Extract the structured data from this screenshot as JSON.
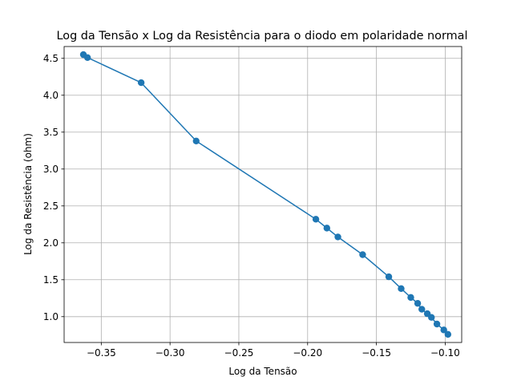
{
  "chart_data": {
    "type": "line",
    "title": "Log da Tensão x Log da Resistência para o diodo em polaridade normal",
    "xlabel": "Log da Tensão",
    "ylabel": "Log da Resistência (ohm)",
    "xlim": [
      -0.377,
      -0.088
    ],
    "ylim": [
      0.65,
      4.66
    ],
    "xticks": [
      -0.35,
      -0.3,
      -0.25,
      -0.2,
      -0.15,
      -0.1
    ],
    "xtick_labels": [
      "−0.35",
      "−0.30",
      "−0.25",
      "−0.20",
      "−0.15",
      "−0.10"
    ],
    "yticks": [
      1.0,
      1.5,
      2.0,
      2.5,
      3.0,
      3.5,
      4.0,
      4.5
    ],
    "ytick_labels": [
      "1.0",
      "1.5",
      "2.0",
      "2.5",
      "3.0",
      "3.5",
      "4.0",
      "4.5"
    ],
    "grid": true,
    "marker": "circle",
    "color": "#1f77b4",
    "x": [
      -0.363,
      -0.36,
      -0.321,
      -0.281,
      -0.194,
      -0.186,
      -0.178,
      -0.16,
      -0.141,
      -0.132,
      -0.125,
      -0.12,
      -0.117,
      -0.113,
      -0.11,
      -0.106,
      -0.101,
      -0.098
    ],
    "y": [
      4.55,
      4.51,
      4.17,
      3.38,
      2.32,
      2.2,
      2.08,
      1.84,
      1.54,
      1.38,
      1.26,
      1.18,
      1.1,
      1.04,
      0.99,
      0.9,
      0.82,
      0.76
    ]
  }
}
